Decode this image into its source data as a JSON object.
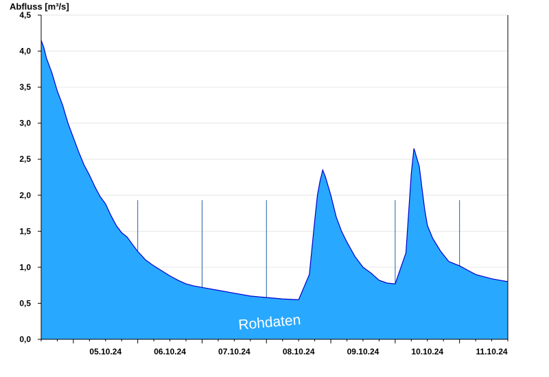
{
  "chart_data": {
    "type": "area",
    "ylabel": "Abfluss [m³/s]",
    "ylim": [
      0,
      4.5
    ],
    "yticks": [
      "0,0",
      "0,5",
      "1,0",
      "1,5",
      "2,0",
      "2,5",
      "3,0",
      "3,5",
      "4,0",
      "4,5"
    ],
    "xlim": [
      "2024-10-04T12:00",
      "2024-10-11T18:00"
    ],
    "xticks": [
      "05.10.24",
      "06.10.24",
      "07.10.24",
      "08.10.24",
      "09.10.24",
      "10.10.24",
      "11.10.24"
    ],
    "grid": "horizontal",
    "annotation": "Rohdaten",
    "colors": {
      "fill": "#29A8FF",
      "line": "#0000CC",
      "grid": "#E6E6E6",
      "day_line": "#1F5FA0"
    },
    "series": [
      {
        "x": [
          "2024-10-04T12:00",
          "2024-10-04T13:00",
          "2024-10-04T14:00",
          "2024-10-04T16:00",
          "2024-10-04T18:00",
          "2024-10-04T20:00",
          "2024-10-04T22:00",
          "2024-10-05T00:00",
          "2024-10-05T02:00",
          "2024-10-05T04:00",
          "2024-10-05T06:00",
          "2024-10-05T08:00",
          "2024-10-05T10:00",
          "2024-10-05T12:00",
          "2024-10-05T14:00",
          "2024-10-05T16:00",
          "2024-10-05T18:00",
          "2024-10-05T20:00",
          "2024-10-05T22:00",
          "2024-10-06T00:00",
          "2024-10-06T03:00",
          "2024-10-06T06:00",
          "2024-10-06T09:00",
          "2024-10-06T12:00",
          "2024-10-06T15:00",
          "2024-10-06T18:00",
          "2024-10-06T21:00",
          "2024-10-07T00:00",
          "2024-10-07T06:00",
          "2024-10-07T12:00",
          "2024-10-07T18:00",
          "2024-10-08T00:00",
          "2024-10-08T06:00",
          "2024-10-08T12:00",
          "2024-10-08T16:00",
          "2024-10-08T18:00",
          "2024-10-08T19:00",
          "2024-10-08T20:00",
          "2024-10-08T21:00",
          "2024-10-08T22:00",
          "2024-10-09T00:00",
          "2024-10-09T02:00",
          "2024-10-09T04:00",
          "2024-10-09T06:00",
          "2024-10-09T09:00",
          "2024-10-09T12:00",
          "2024-10-09T15:00",
          "2024-10-09T18:00",
          "2024-10-09T21:00",
          "2024-10-10T00:00",
          "2024-10-10T04:00",
          "2024-10-10T06:00",
          "2024-10-10T07:00",
          "2024-10-10T09:00",
          "2024-10-10T10:00",
          "2024-10-10T11:00",
          "2024-10-10T12:00",
          "2024-10-10T14:00",
          "2024-10-10T17:00",
          "2024-10-10T20:00",
          "2024-10-11T00:00",
          "2024-10-11T03:00",
          "2024-10-11T06:00",
          "2024-10-11T09:00",
          "2024-10-11T12:00",
          "2024-10-11T15:00",
          "2024-10-11T18:00"
        ],
        "values": [
          4.15,
          4.05,
          3.9,
          3.7,
          3.45,
          3.25,
          3.0,
          2.8,
          2.6,
          2.42,
          2.28,
          2.12,
          1.98,
          1.88,
          1.72,
          1.58,
          1.48,
          1.42,
          1.32,
          1.22,
          1.1,
          1.02,
          0.95,
          0.88,
          0.82,
          0.77,
          0.74,
          0.72,
          0.68,
          0.64,
          0.6,
          0.58,
          0.56,
          0.55,
          0.9,
          1.65,
          2.0,
          2.2,
          2.35,
          2.25,
          2.0,
          1.7,
          1.5,
          1.35,
          1.15,
          1.0,
          0.92,
          0.82,
          0.78,
          0.77,
          1.2,
          2.3,
          2.65,
          2.4,
          2.1,
          1.8,
          1.58,
          1.4,
          1.22,
          1.08,
          1.02,
          0.96,
          0.9,
          0.87,
          0.84,
          0.82,
          0.8
        ]
      }
    ]
  }
}
